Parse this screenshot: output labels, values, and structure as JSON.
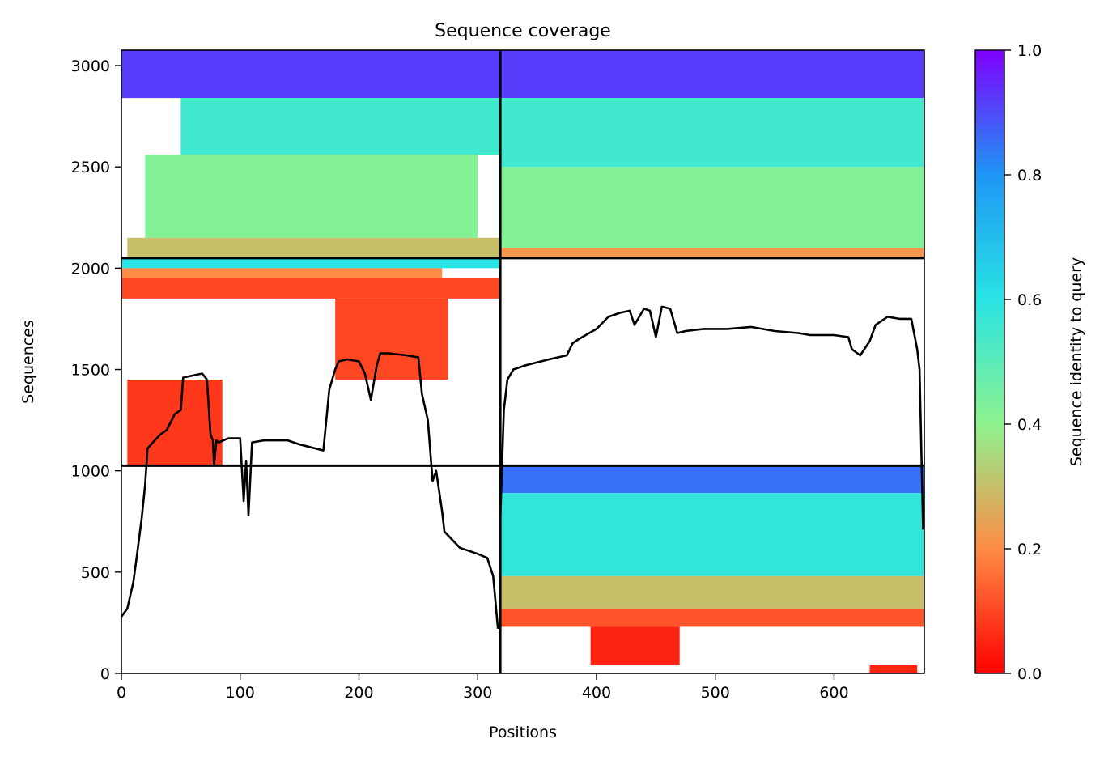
{
  "chart_data": {
    "type": "heatmap",
    "title": "Sequence coverage",
    "xlabel": "Positions",
    "ylabel": "Sequences",
    "xlim": [
      0,
      676
    ],
    "ylim": [
      0,
      3076
    ],
    "xticks": [
      0,
      100,
      200,
      300,
      400,
      500,
      600
    ],
    "yticks": [
      0,
      500,
      1000,
      1500,
      2000,
      2500,
      3000
    ],
    "colorbar": {
      "label": "Sequence identity to query",
      "colormap": "rainbow_r",
      "range": [
        0,
        1
      ],
      "ticks": [
        "0.0",
        "0.2",
        "0.4",
        "0.6",
        "0.8",
        "1.0"
      ],
      "stops": [
        "#ff0000",
        "#ff8c46",
        "#8ef28e",
        "#28e4e4",
        "#1e96f5",
        "#7f00ff"
      ]
    },
    "chain_boundaries": {
      "x_position": 319,
      "y_sequences": [
        1025,
        2050
      ]
    },
    "blocks": [
      {
        "x_range": [
          0,
          319
        ],
        "y_range": [
          2050,
          3076
        ],
        "rows_from_top": [
          {
            "until": 2840,
            "identity": 0.92,
            "start": 0,
            "end": 319
          },
          {
            "until": 2560,
            "identity": 0.55,
            "start": 50,
            "end": 319
          },
          {
            "until": 2150,
            "identity": 0.42,
            "start": 20,
            "end": 300
          },
          {
            "until": 2050,
            "identity": 0.3,
            "start": 5,
            "end": 319
          }
        ]
      },
      {
        "x_range": [
          319,
          676
        ],
        "y_range": [
          2050,
          3076
        ],
        "rows_from_top": [
          {
            "until": 2840,
            "identity": 0.92,
            "start": 319,
            "end": 676
          },
          {
            "until": 2500,
            "identity": 0.55,
            "start": 319,
            "end": 676
          },
          {
            "until": 2100,
            "identity": 0.42,
            "start": 319,
            "end": 676
          },
          {
            "until": 2050,
            "identity": 0.22,
            "start": 319,
            "end": 676
          }
        ]
      },
      {
        "x_range": [
          0,
          319
        ],
        "y_range": [
          1025,
          2050
        ],
        "rows_from_top": [
          {
            "until": 2000,
            "identity": 0.6,
            "start": 0,
            "end": 319
          },
          {
            "until": 1950,
            "identity": 0.2,
            "start": 0,
            "end": 270
          },
          {
            "until": 1850,
            "identity": 0.1,
            "start": 0,
            "end": 319
          },
          {
            "until": 1450,
            "identity": 0.1,
            "start": 180,
            "end": 275
          },
          {
            "until": 1025,
            "identity": 0.08,
            "start": 5,
            "end": 85
          }
        ]
      },
      {
        "x_range": [
          319,
          676
        ],
        "y_range": [
          0,
          1025
        ],
        "rows_from_top": [
          {
            "until": 890,
            "identity": 0.85,
            "start": 319,
            "end": 676
          },
          {
            "until": 480,
            "identity": 0.58,
            "start": 319,
            "end": 676
          },
          {
            "until": 320,
            "identity": 0.3,
            "start": 319,
            "end": 676
          },
          {
            "until": 230,
            "identity": 0.12,
            "start": 319,
            "end": 676
          },
          {
            "until": 40,
            "identity": 0.05,
            "start": 395,
            "end": 470
          },
          {
            "until": 0,
            "identity": 0.05,
            "start": 630,
            "end": 670
          }
        ]
      }
    ],
    "coverage_line": {
      "name": "",
      "chain_a": {
        "x": [
          0,
          5,
          10,
          13,
          17,
          20,
          22,
          28,
          33,
          38,
          45,
          50,
          52,
          60,
          68,
          72,
          75,
          77,
          78,
          80,
          82,
          90,
          100,
          103,
          105,
          107,
          110,
          120,
          140,
          150,
          170,
          175,
          180,
          183,
          190,
          200,
          205,
          210,
          215,
          218,
          225,
          240,
          250,
          253,
          258,
          262,
          265,
          270,
          272,
          285,
          300,
          308,
          313,
          317
        ],
        "y": [
          280,
          320,
          450,
          580,
          760,
          930,
          1110,
          1150,
          1180,
          1200,
          1280,
          1300,
          1460,
          1470,
          1480,
          1450,
          1180,
          1150,
          1030,
          1150,
          1140,
          1160,
          1160,
          850,
          1050,
          780,
          1140,
          1150,
          1150,
          1130,
          1100,
          1400,
          1500,
          1540,
          1550,
          1540,
          1480,
          1350,
          1520,
          1580,
          1580,
          1570,
          1560,
          1380,
          1250,
          950,
          1000,
          800,
          700,
          620,
          590,
          570,
          480,
          220
        ]
      },
      "chain_b": {
        "x": [
          319,
          322,
          325,
          330,
          340,
          360,
          375,
          380,
          385,
          400,
          410,
          420,
          428,
          432,
          440,
          445,
          450,
          455,
          462,
          468,
          475,
          490,
          510,
          530,
          550,
          570,
          580,
          600,
          612,
          615,
          622,
          630,
          635,
          645,
          655,
          665,
          670,
          672,
          675
        ],
        "y": [
          760,
          1300,
          1450,
          1500,
          1520,
          1550,
          1570,
          1630,
          1650,
          1700,
          1760,
          1780,
          1790,
          1720,
          1800,
          1790,
          1660,
          1810,
          1800,
          1680,
          1690,
          1700,
          1700,
          1710,
          1690,
          1680,
          1670,
          1670,
          1660,
          1600,
          1570,
          1640,
          1720,
          1760,
          1750,
          1750,
          1600,
          1500,
          710
        ]
      }
    }
  }
}
